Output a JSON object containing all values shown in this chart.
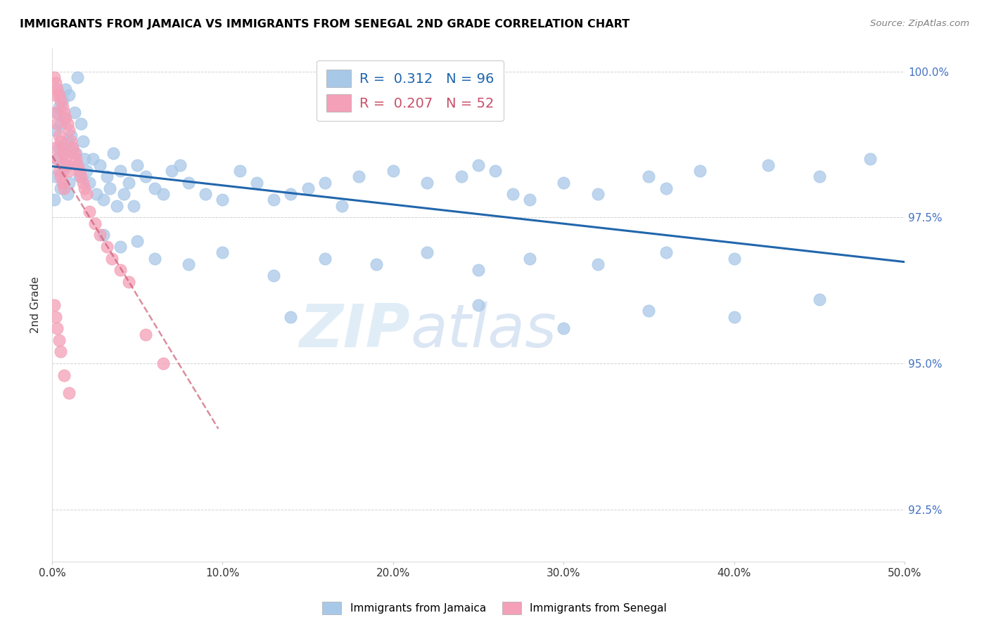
{
  "title": "IMMIGRANTS FROM JAMAICA VS IMMIGRANTS FROM SENEGAL 2ND GRADE CORRELATION CHART",
  "source": "Source: ZipAtlas.com",
  "ylabel": "2nd Grade",
  "legend_jamaica": "Immigrants from Jamaica",
  "legend_senegal": "Immigrants from Senegal",
  "R_jamaica": 0.312,
  "N_jamaica": 96,
  "R_senegal": 0.207,
  "N_senegal": 52,
  "xlim": [
    0.0,
    0.5
  ],
  "ylim": [
    0.916,
    1.004
  ],
  "yticks": [
    0.925,
    0.95,
    0.975,
    1.0
  ],
  "ytick_labels": [
    "92.5%",
    "95.0%",
    "97.5%",
    "100.0%"
  ],
  "xticks": [
    0.0,
    0.1,
    0.2,
    0.3,
    0.4,
    0.5
  ],
  "xtick_labels": [
    "0.0%",
    "10.0%",
    "20.0%",
    "30.0%",
    "40.0%",
    "50.0%"
  ],
  "color_jamaica": "#a8c8e8",
  "color_senegal": "#f4a0b8",
  "trendline_jamaica": "#2166ac",
  "trendline_senegal": "#c8506a",
  "watermark_zip": "ZIP",
  "watermark_atlas": "atlas",
  "jamaica_x": [
    0.001,
    0.002,
    0.002,
    0.003,
    0.003,
    0.004,
    0.004,
    0.005,
    0.005,
    0.006,
    0.006,
    0.007,
    0.007,
    0.008,
    0.008,
    0.009,
    0.009,
    0.01,
    0.01,
    0.011,
    0.012,
    0.013,
    0.014,
    0.015,
    0.015,
    0.016,
    0.017,
    0.018,
    0.019,
    0.02,
    0.022,
    0.024,
    0.026,
    0.028,
    0.03,
    0.032,
    0.034,
    0.036,
    0.038,
    0.04,
    0.042,
    0.045,
    0.048,
    0.05,
    0.055,
    0.06,
    0.065,
    0.07,
    0.075,
    0.08,
    0.09,
    0.1,
    0.11,
    0.12,
    0.13,
    0.14,
    0.15,
    0.16,
    0.17,
    0.18,
    0.2,
    0.22,
    0.24,
    0.25,
    0.26,
    0.27,
    0.28,
    0.3,
    0.32,
    0.35,
    0.36,
    0.38,
    0.42,
    0.45,
    0.48,
    0.03,
    0.04,
    0.05,
    0.06,
    0.08,
    0.1,
    0.13,
    0.16,
    0.19,
    0.22,
    0.25,
    0.28,
    0.32,
    0.36,
    0.4,
    0.14,
    0.25,
    0.3,
    0.35,
    0.4,
    0.45
  ],
  "jamaica_y": [
    0.978,
    0.982,
    0.99,
    0.985,
    0.993,
    0.987,
    0.994,
    0.98,
    0.991,
    0.983,
    0.995,
    0.986,
    0.992,
    0.984,
    0.997,
    0.979,
    0.988,
    0.981,
    0.996,
    0.989,
    0.987,
    0.993,
    0.986,
    0.984,
    0.999,
    0.982,
    0.991,
    0.988,
    0.985,
    0.983,
    0.981,
    0.985,
    0.979,
    0.984,
    0.978,
    0.982,
    0.98,
    0.986,
    0.977,
    0.983,
    0.979,
    0.981,
    0.977,
    0.984,
    0.982,
    0.98,
    0.979,
    0.983,
    0.984,
    0.981,
    0.979,
    0.978,
    0.983,
    0.981,
    0.978,
    0.979,
    0.98,
    0.981,
    0.977,
    0.982,
    0.983,
    0.981,
    0.982,
    0.984,
    0.983,
    0.979,
    0.978,
    0.981,
    0.979,
    0.982,
    0.98,
    0.983,
    0.984,
    0.982,
    0.985,
    0.972,
    0.97,
    0.971,
    0.968,
    0.967,
    0.969,
    0.965,
    0.968,
    0.967,
    0.969,
    0.966,
    0.968,
    0.967,
    0.969,
    0.968,
    0.958,
    0.96,
    0.956,
    0.959,
    0.958,
    0.961
  ],
  "senegal_x": [
    0.001,
    0.001,
    0.002,
    0.002,
    0.002,
    0.003,
    0.003,
    0.003,
    0.004,
    0.004,
    0.004,
    0.005,
    0.005,
    0.005,
    0.006,
    0.006,
    0.006,
    0.007,
    0.007,
    0.007,
    0.008,
    0.008,
    0.009,
    0.009,
    0.01,
    0.01,
    0.011,
    0.012,
    0.013,
    0.014,
    0.015,
    0.016,
    0.017,
    0.018,
    0.019,
    0.02,
    0.022,
    0.025,
    0.028,
    0.032,
    0.035,
    0.04,
    0.045,
    0.055,
    0.065,
    0.001,
    0.002,
    0.003,
    0.004,
    0.005,
    0.007,
    0.01
  ],
  "senegal_y": [
    0.999,
    0.996,
    0.998,
    0.993,
    0.987,
    0.997,
    0.991,
    0.985,
    0.996,
    0.989,
    0.983,
    0.995,
    0.988,
    0.982,
    0.994,
    0.987,
    0.981,
    0.993,
    0.986,
    0.98,
    0.992,
    0.985,
    0.991,
    0.984,
    0.99,
    0.983,
    0.988,
    0.987,
    0.986,
    0.985,
    0.984,
    0.983,
    0.982,
    0.981,
    0.98,
    0.979,
    0.976,
    0.974,
    0.972,
    0.97,
    0.968,
    0.966,
    0.964,
    0.955,
    0.95,
    0.96,
    0.958,
    0.956,
    0.954,
    0.952,
    0.948,
    0.945
  ]
}
